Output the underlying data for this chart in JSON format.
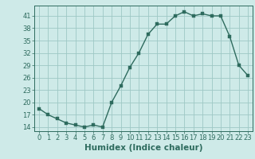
{
  "x": [
    0,
    1,
    2,
    3,
    4,
    5,
    6,
    7,
    8,
    9,
    10,
    11,
    12,
    13,
    14,
    15,
    16,
    17,
    18,
    19,
    20,
    21,
    22,
    23
  ],
  "y": [
    18.5,
    17.0,
    16.0,
    15.0,
    14.5,
    14.0,
    14.5,
    14.0,
    20.0,
    24.0,
    28.5,
    32.0,
    36.5,
    39.0,
    39.0,
    41.0,
    42.0,
    41.0,
    41.5,
    41.0,
    41.0,
    36.0,
    29.0,
    26.5
  ],
  "line_color": "#2e6b5e",
  "marker_color": "#2e6b5e",
  "bg_color": "#ceeae8",
  "grid_color": "#9ec8c5",
  "xlabel": "Humidex (Indice chaleur)",
  "xlim": [
    -0.5,
    23.5
  ],
  "ylim": [
    13,
    43.5
  ],
  "yticks": [
    14,
    17,
    20,
    23,
    26,
    29,
    32,
    35,
    38,
    41
  ],
  "xticks": [
    0,
    1,
    2,
    3,
    4,
    5,
    6,
    7,
    8,
    9,
    10,
    11,
    12,
    13,
    14,
    15,
    16,
    17,
    18,
    19,
    20,
    21,
    22,
    23
  ],
  "marker_size": 2.5,
  "line_width": 1.0,
  "tick_color": "#2e6b5e",
  "label_color": "#2e6b5e",
  "xlabel_fontsize": 7.5,
  "tick_fontsize": 6.0
}
